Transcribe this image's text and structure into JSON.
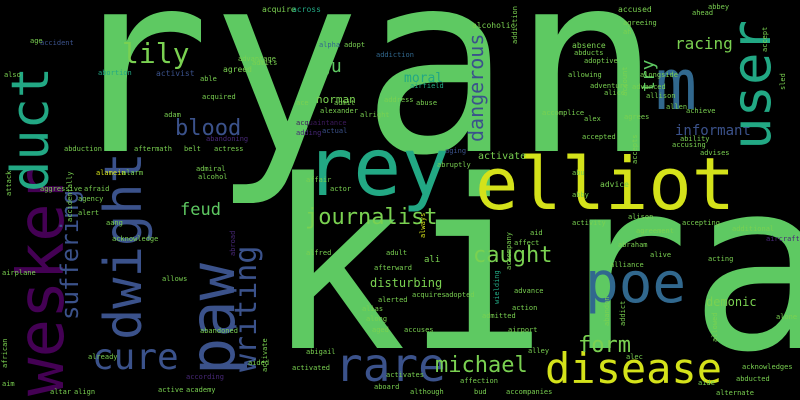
{
  "colors": {
    "background": "#000000",
    "green": "#5ec962",
    "light_green": "#7ad151",
    "yellow": "#d4e21a",
    "teal": "#22a884",
    "blue": "#31688e",
    "dark_blue": "#2c3e7a",
    "indigo": "#3b528b",
    "purple": "#440154",
    "violet": "#482878",
    "dim_purple": "#3e1a5e"
  },
  "words": {
    "ryan": "ryan",
    "kira": "kira",
    "elliot": "elliot",
    "rey": "rey",
    "wesker": "wesker",
    "duct": "duct",
    "dwight": "dwight",
    "paw": "paw",
    "user": "user",
    "m": "m",
    "lily": "lily",
    "poe": "poe",
    "disease": "disease",
    "rare": "rare",
    "cure": "cure",
    "writing": "writing",
    "journalist": "journalist",
    "suffering": "suffering",
    "blood": "blood",
    "dangerous": "dangerous",
    "caught": "caught",
    "michael": "michael",
    "form": "form",
    "feud": "feud",
    "gu": "gu",
    "racing": "racing",
    "try": "try",
    "informant": "informant",
    "moral": "moral",
    "norman": "norman",
    "disturbing": "disturbing",
    "demonic": "demonic",
    "acquire": "acquire",
    "across": "across",
    "accused": "accused",
    "accident": "accident",
    "addiction": "addiction",
    "abortion": "abortion",
    "activist": "activist",
    "alcoholic": "alcoholic",
    "airfield": "airfield",
    "adoptive": "adoptive",
    "absence": "absence",
    "abducts": "abducts",
    "allowing": "allowing",
    "adventure": "adventure",
    "alice": "alice",
    "alex": "alex",
    "accomplice": "accomplice",
    "accepted": "accepted",
    "advantage": "advantage",
    "agreed": "agreed",
    "admits": "admits",
    "alpha": "alpha",
    "adopt": "adopt",
    "addition": "addition",
    "acquired": "acquired",
    "adam": "adam",
    "admit": "admit",
    "alexander": "alexander",
    "address": "address",
    "abuse": "abuse",
    "alright": "alright",
    "acquaintance": "acquaintance",
    "actual": "actual",
    "adding": "adding",
    "abandoning": "abandoning",
    "belt": "belt",
    "actress": "actress",
    "aftermath": "aftermath",
    "admiral": "admiral",
    "alcohol": "alcohol",
    "abduction": "abduction",
    "alamein": "alamein",
    "alarm": "alarm",
    "accidentally": "accidentally",
    "aggressive": "aggressive",
    "afraid": "afraid",
    "agency": "agency",
    "alert": "alert",
    "aang": "aang",
    "acknowledge": "acknowledge",
    "abroad": "abroad",
    "allows": "allows",
    "airplane": "airplane",
    "activate": "activate",
    "abruptly": "abruptly",
    "aging": "aging",
    "affair": "affair",
    "actor": "actor",
    "always": "always",
    "alfred": "alfred",
    "adult": "adult",
    "afterward": "afterward",
    "ali": "ali",
    "aid": "aid",
    "affect": "affect",
    "accompany": "accompany",
    "abraham": "abraham",
    "alive": "alive",
    "alliance": "alliance",
    "acting": "acting",
    "admitted": "admitted",
    "adopted": "adopted",
    "advance": "advance",
    "action": "action",
    "accuses": "accuses",
    "airport": "airport",
    "acquires": "acquires",
    "alerted": "alerted",
    "alias": "alias",
    "aged": "aged",
    "abandoned": "abandoned",
    "abigail": "abigail",
    "alley": "alley",
    "already": "already",
    "aided": "aided",
    "according": "according",
    "activated": "activated",
    "activates": "activates",
    "affection": "affection",
    "although": "although",
    "bud": "bud",
    "accompanies": "accompanies",
    "aboard": "aboard",
    "academy": "academy",
    "active": "active",
    "altar": "altar",
    "align": "align",
    "ahead": "ahead",
    "abbey": "abbey",
    "accept": "accept",
    "agreeing": "agreeing",
    "ah": "ah",
    "alongside": "alongside",
    "advanced": "advanced",
    "allison": "allison",
    "agrees": "agrees",
    "allen": "allen",
    "ability": "ability",
    "achieve": "achieve",
    "accusing": "accusing",
    "advises": "advises",
    "account": "account",
    "accepts": "accepts",
    "advice": "advice",
    "abby": "abby",
    "alison": "alison",
    "abu": "abu",
    "accepting": "accepting",
    "agreement": "agreement",
    "additional": "additional",
    "aircraft": "aircraft",
    "activity": "activity",
    "abandon": "abandon",
    "addict": "addict",
    "alec": "alec",
    "allowed": "allowed",
    "alone": "alone",
    "acknowledges": "acknowledges",
    "abducted": "abducted",
    "aide": "aide",
    "alternate": "alternate",
    "age": "age",
    "also": "also",
    "able": "able",
    "sled": "sled",
    "attack": "attack",
    "aim": "aim",
    "african": "african",
    "wielding": "wielding",
    "along": "along",
    "ace": "ace"
  }
}
